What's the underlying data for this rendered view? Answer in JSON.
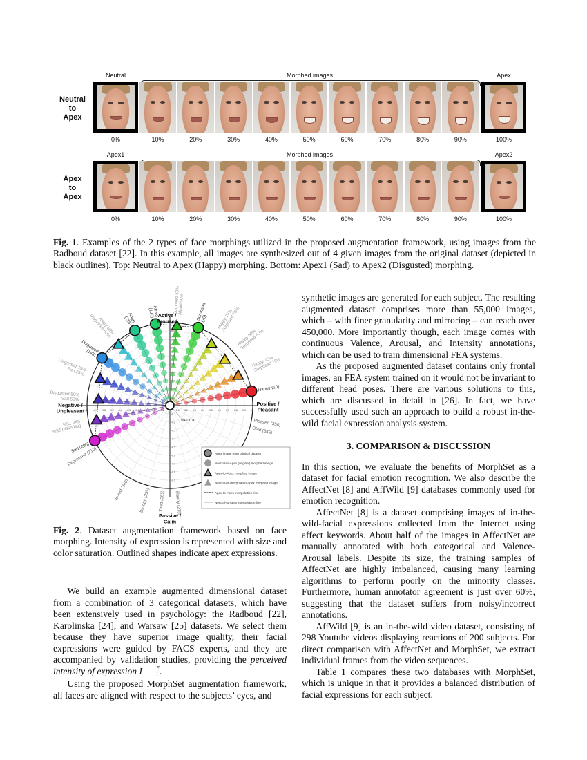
{
  "fig1": {
    "rows": [
      {
        "row_label": [
          "Neutral",
          "to",
          "Apex"
        ],
        "start_label": "Neutral",
        "middle_label": "Morphed images",
        "end_label": "Apex",
        "percents": [
          "0%",
          "10%",
          "20%",
          "30%",
          "40%",
          "50%",
          "60%",
          "70%",
          "80%",
          "90%",
          "100%"
        ]
      },
      {
        "row_label": [
          "Apex",
          "to",
          "Apex"
        ],
        "start_label": "Apex1",
        "middle_label": "Morphed images",
        "end_label": "Apex2",
        "percents": [
          "0%",
          "10%",
          "20%",
          "30%",
          "40%",
          "50%",
          "60%",
          "70%",
          "80%",
          "90%",
          "100%"
        ]
      }
    ],
    "caption_label": "Fig. 1",
    "caption_text": ". Examples of the 2 types of face morphings utilized in the proposed augmentation framework, using images from the Radboud dataset [22]. In this example, all images are synthesized out of 4 given images from the original dataset (depicted in black outlines). Top: Neutral to Apex (Happy) morphing. Bottom: Apex1 (Sad) to Apex2 (Disgusted) morphing."
  },
  "chart_data": {
    "type": "scatter",
    "coordinate_system": "polar (valence-arousal circle)",
    "axis_labels": {
      "top": "Active / Aroused",
      "bottom": "Passive / Calm",
      "right": "Positive / Pleasant",
      "left": "Negative / Unpleasant"
    },
    "center_label": "Neutral",
    "xlim": [
      -1,
      1
    ],
    "ylim": [
      -1,
      1
    ],
    "ticks_positive": [
      "0.1",
      "0.2",
      "0.3",
      "0.4",
      "0.5",
      "0.6",
      "0.7",
      "0.8",
      "0.9",
      "1"
    ],
    "ticks_negative": [
      "-0.1",
      "-0.2",
      "-0.3",
      "-0.4",
      "-0.5",
      "-0.6",
      "-0.7",
      "-0.8",
      "-0.9",
      "-1"
    ],
    "grid": true,
    "apex_expressions": [
      {
        "label": "Happy (10)",
        "angle": 10,
        "color": "#e8202a"
      },
      {
        "label": "Surprised (70)",
        "angle": 70,
        "color": "#33cc33"
      },
      {
        "label": "Afraid (100)",
        "angle": 100,
        "color": "#22cc66"
      },
      {
        "label": "Angry (115)",
        "angle": 115,
        "color": "#22c88e"
      },
      {
        "label": "Disgusted (145)",
        "angle": 145,
        "color": "#2a8ae0"
      },
      {
        "label": "Sad (205)",
        "angle": 205,
        "color": "#d020d0"
      }
    ],
    "interpolated_expressions": [
      {
        "label": [
          "Happy 75%",
          "Surprised 25%"
        ],
        "from": 10,
        "to": 70,
        "weight": 0.25,
        "color": "#e08a20"
      },
      {
        "label": [
          "Happy 50%",
          "Surprised 50%"
        ],
        "from": 10,
        "to": 70,
        "weight": 0.5,
        "color": "#e0d020"
      },
      {
        "label": [
          "Happy 25%",
          "Surprised 75%"
        ],
        "from": 10,
        "to": 70,
        "weight": 0.75,
        "color": "#b8d020"
      },
      {
        "label": [
          "Surprised 50%",
          "Afraid 50%"
        ],
        "from": 70,
        "to": 100,
        "weight": 0.5,
        "color": "#22bb22"
      },
      {
        "label": [
          "Angry 50%",
          "Disgusted 50%"
        ],
        "from": 115,
        "to": 145,
        "weight": 0.5,
        "color": "#20b8c8"
      },
      {
        "label": [
          "Disgusted 75%",
          "Sad 25%"
        ],
        "from": 145,
        "to": 205,
        "weight": 0.25,
        "color": "#3040c8"
      },
      {
        "label": [
          "Disgusted 50%",
          "Sad 50%"
        ],
        "from": 145,
        "to": 205,
        "weight": 0.5,
        "color": "#4030c0"
      },
      {
        "label": [
          "Disgusted 25%",
          "Sad 75%"
        ],
        "from": 145,
        "to": 205,
        "weight": 0.75,
        "color": "#7a30c8"
      }
    ],
    "intensity_steps": [
      0.1,
      0.2,
      0.3,
      0.4,
      0.5,
      0.6,
      0.7,
      0.8,
      0.9,
      1.0
    ],
    "other_labels": [
      {
        "label": "Pleased (350)",
        "angle": 350
      },
      {
        "label": "Glad (345)",
        "angle": 345
      },
      {
        "label": "Depressed (210)",
        "angle": 210
      },
      {
        "label": "Bored (240)",
        "angle": 240
      },
      {
        "label": "Droopy (255)",
        "angle": 255
      },
      {
        "label": "Tired (265)",
        "angle": 265
      },
      {
        "label": "Sleepy (275)",
        "angle": 275
      }
    ],
    "legend": {
      "placement": "bottom-right",
      "entries": [
        "Apex image from original dataset",
        "Neutral-to-Apex (original) morphed image",
        "Apex-to-Apex morphed image",
        "Neutral-to-interpolated-Apex morphed image",
        "Apex-to-Apex interpolation line",
        "Neutral-to-Apex interpolation line"
      ]
    }
  },
  "fig2": {
    "caption_label": "Fig. 2",
    "caption_text": ". Dataset augmentation framework based on face morphing. Intensity of expression is represented with size and color saturation. Outlined shapes indicate apex expressions."
  },
  "left_column": {
    "p1_text": "We build an example augmented dimensional dataset from a combination of 3 categorical datasets, which have been extensively used in psychology: the Radboud [22], Karolinska [24], and Warsaw [25] datasets. We select them because they have superior image quality, their facial expressions were guided by FACS experts, and they are accompanied by validation studies, providing the ",
    "p1_italic": "perceived intensity of expression",
    "p1_math_base": "I",
    "p1_math_sub": "i",
    "p1_math_sup": "E",
    "p1_end": ".",
    "p2": "Using the proposed MorphSet augmentation framework, all faces are aligned with respect to the subjects’ eyes, and"
  },
  "right_column": {
    "p1": "synthetic images are generated for each subject. The resulting augmented dataset comprises more than 55,000 images, which – with finer granularity and mirroring – can reach over 450,000. More importantly though, each image comes with continuous Valence, Arousal, and Intensity annotations, which can be used to train dimensional FEA systems.",
    "p2": "As the proposed augmented dataset contains only frontal images, an FEA system trained on it would not be invariant to different head poses. There are various solutions to this, which are discussed in detail in [26]. In fact, we have successfully used such an approach to build a robust in-the-wild facial expression analysis system.",
    "heading": "3. COMPARISON & DISCUSSION",
    "p3": "In this section, we evaluate the benefits of MorphSet as a dataset for facial emotion recognition. We also describe the AffectNet [8] and AffWild [9] databases commonly used for emotion recognition.",
    "p4": "AffectNet [8] is a dataset comprising images of in-the-wild-facial expressions collected from the Internet using affect keywords. About half of the images in AffectNet are manually annotated with both categorical and Valence-Arousal labels. Despite its size, the training samples of AffectNet are highly imbalanced, causing many learning algorithms to perform poorly on the minority classes. Furthermore, human annotator agreement is just over 60%, suggesting that the dataset suffers from noisy/incorrect annotations.",
    "p5": "AffWild [9] is an in-the-wild video dataset, consisting of 298 Youtube videos displaying reactions of 200 subjects. For direct comparison with AffectNet and MorphSet, we extract individual frames from the video sequences.",
    "p6": "Table 1 compares these two databases with MorphSet, which is unique in that it provides a balanced distribution of facial expressions for each subject."
  }
}
